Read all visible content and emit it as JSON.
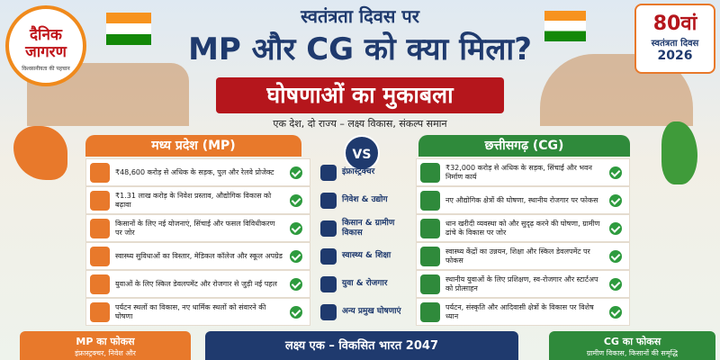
{
  "brand": {
    "name": "दैनिक जागरण",
    "tagline": "विश्वसनीयता की पहचान"
  },
  "header": {
    "kicker": "स्वतंत्रता दिवस पर",
    "title": "MP और CG को क्या मिला?",
    "banner": "घोषणाओं का मुकाबला",
    "subtitle": "एक देश, दो राज्य – लक्ष्य विकास, संकल्प समान"
  },
  "badge": {
    "number": "80वां",
    "label": "स्वतंत्रता दिवस",
    "year": "2026"
  },
  "comparison": {
    "left_title": "मध्य प्रदेश (MP)",
    "vs": "VS",
    "right_title": "छत्तीसगढ़ (CG)",
    "rows": [
      {
        "mp": "₹48,600 करोड़ से अधिक के सड़क, पुल और रेलवे प्रोजेक्ट",
        "category": "इंफ्रास्ट्रक्चर",
        "cg": "₹32,000 करोड़ से अधिक के सड़क, सिंचाई और भवन निर्माण कार्य"
      },
      {
        "mp": "₹1.31 लाख करोड़ के निवेश प्रस्ताव, औद्योगिक विकास को बढ़ावा",
        "category": "निवेश & उद्योग",
        "cg": "नए औद्योगिक क्षेत्रों की घोषणा, स्थानीय रोजगार पर फोकस"
      },
      {
        "mp": "किसानों के लिए नई योजनाएं, सिंचाई और फसल विविधीकरण पर जोर",
        "category": "किसान & ग्रामीण विकास",
        "cg": "धान खरीदी व्यवस्था को और सुदृढ़ करने की घोषणा, ग्रामीण ढांचे के विकास पर जोर"
      },
      {
        "mp": "स्वास्थ्य सुविधाओं का विस्तार, मेडिकल कॉलेज और स्कूल अपग्रेड",
        "category": "स्वास्थ्य & शिक्षा",
        "cg": "स्वास्थ्य केंद्रों का उन्नयन, शिक्षा और स्किल डेवलपमेंट पर फोकस"
      },
      {
        "mp": "युवाओं के लिए स्किल डेवलपमेंट और रोजगार से जुड़ी नई पहल",
        "category": "युवा & रोजगार",
        "cg": "स्थानीय युवाओं के लिए प्रशिक्षण, स्व-रोजगार और स्टार्टअप को प्रोत्साहन"
      },
      {
        "mp": "पर्यटन स्थलों का विकास, नए धार्मिक स्थलों को संवारने की घोषणा",
        "category": "अन्य प्रमुख घोषणाएं",
        "cg": "पर्यटन, संस्कृति और आदिवासी क्षेत्रों के विकास पर विशेष ध्यान"
      }
    ]
  },
  "footer": {
    "mp_focus_title": "MP का फोकस",
    "mp_focus_text": "इंफ्रास्ट्रक्चर, निवेश और",
    "center_title": "लक्ष्य एक – विकसित भारत 2047",
    "cg_focus_title": "CG का फोकस",
    "cg_focus_text": "ग्रामीण विकास, किसानों की समृद्धि"
  }
}
